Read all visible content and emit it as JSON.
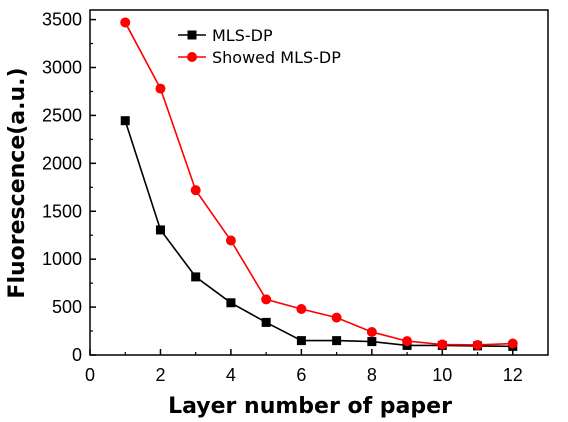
{
  "chart_data": {
    "type": "line",
    "xlabel": "Layer number of paper",
    "ylabel": "Fluorescence(a.u.)",
    "xlim": [
      0,
      13
    ],
    "ylim": [
      0,
      3600
    ],
    "xticks": [
      "0",
      "2",
      "4",
      "6",
      "8",
      "10",
      "12"
    ],
    "yticks": [
      "0",
      "500",
      "1000",
      "1500",
      "2000",
      "2500",
      "3000",
      "3500"
    ],
    "grid": false,
    "legend_position": "top-center",
    "series": [
      {
        "name": "MLS-DP",
        "color": "#000000",
        "marker": "square",
        "x": [
          1,
          2,
          3,
          4,
          5,
          6,
          7,
          8,
          9,
          10,
          11,
          12
        ],
        "y": [
          2445,
          1305,
          815,
          545,
          340,
          150,
          150,
          140,
          100,
          100,
          95,
          90
        ]
      },
      {
        "name": "Showed MLS-DP",
        "color": "#ff0000",
        "marker": "circle",
        "x": [
          1,
          2,
          3,
          4,
          5,
          6,
          7,
          8,
          9,
          10,
          11,
          12
        ],
        "y": [
          3470,
          2780,
          1720,
          1195,
          580,
          480,
          390,
          240,
          145,
          110,
          105,
          120
        ]
      }
    ]
  }
}
